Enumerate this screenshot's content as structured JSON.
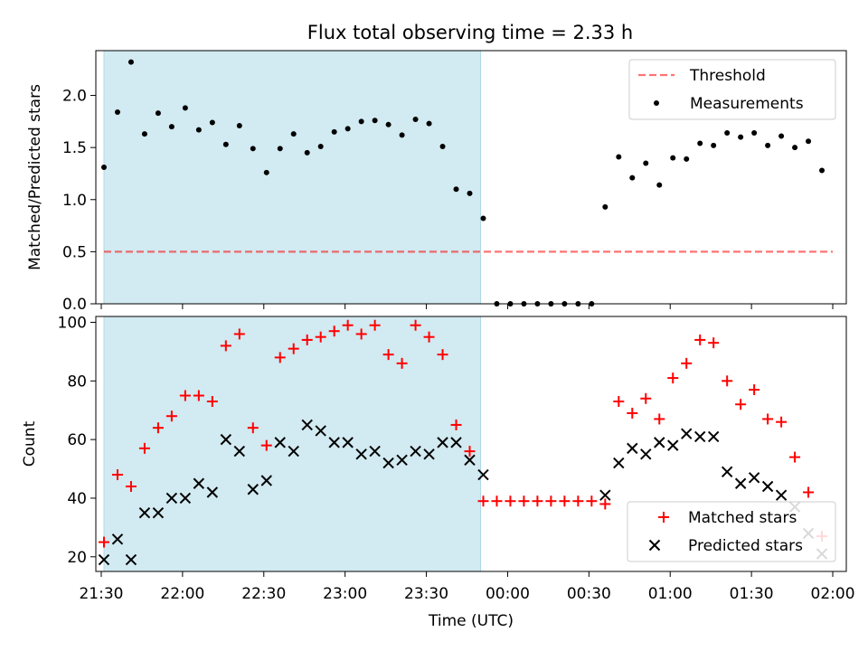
{
  "title": "Flux total observing time = 2.33 h",
  "colors": {
    "shade": "#add8e6",
    "threshold": "#ff0000",
    "measurement": "#000000",
    "matched": "#ff0000",
    "predicted": "#000000"
  },
  "chart_data": [
    {
      "type": "scatter",
      "ylabel": "Matched/Predicted stars",
      "xlim": [
        "21:28",
        "02:05"
      ],
      "ylim": [
        0,
        2.43
      ],
      "yticks": [
        0.0,
        0.5,
        1.0,
        1.5,
        2.0
      ],
      "shaded_interval": [
        "21:31",
        "23:50"
      ],
      "legend": {
        "position": "top-right",
        "entries": [
          "Threshold",
          "Measurements"
        ]
      },
      "threshold": {
        "name": "Threshold",
        "y": 0.5,
        "x": [
          "21:31",
          "02:00"
        ]
      },
      "series": [
        {
          "name": "Measurements",
          "points": [
            [
              "21:31",
              1.31
            ],
            [
              "21:36",
              1.84
            ],
            [
              "21:41",
              2.32
            ],
            [
              "21:46",
              1.63
            ],
            [
              "21:51",
              1.83
            ],
            [
              "21:56",
              1.7
            ],
            [
              "22:01",
              1.88
            ],
            [
              "22:06",
              1.67
            ],
            [
              "22:11",
              1.74
            ],
            [
              "22:16",
              1.53
            ],
            [
              "22:21",
              1.71
            ],
            [
              "22:26",
              1.49
            ],
            [
              "22:31",
              1.26
            ],
            [
              "22:36",
              1.49
            ],
            [
              "22:41",
              1.63
            ],
            [
              "22:46",
              1.45
            ],
            [
              "22:51",
              1.51
            ],
            [
              "22:56",
              1.65
            ],
            [
              "23:01",
              1.68
            ],
            [
              "23:06",
              1.75
            ],
            [
              "23:11",
              1.76
            ],
            [
              "23:16",
              1.72
            ],
            [
              "23:21",
              1.62
            ],
            [
              "23:26",
              1.77
            ],
            [
              "23:31",
              1.73
            ],
            [
              "23:36",
              1.51
            ],
            [
              "23:41",
              1.1
            ],
            [
              "23:46",
              1.06
            ],
            [
              "23:51",
              0.82
            ],
            [
              "23:56",
              0.0
            ],
            [
              "00:01",
              0.0
            ],
            [
              "00:06",
              0.0
            ],
            [
              "00:11",
              0.0
            ],
            [
              "00:16",
              0.0
            ],
            [
              "00:21",
              0.0
            ],
            [
              "00:26",
              0.0
            ],
            [
              "00:31",
              0.0
            ],
            [
              "00:36",
              0.93
            ],
            [
              "00:41",
              1.41
            ],
            [
              "00:46",
              1.21
            ],
            [
              "00:51",
              1.35
            ],
            [
              "00:56",
              1.14
            ],
            [
              "01:01",
              1.4
            ],
            [
              "01:06",
              1.39
            ],
            [
              "01:11",
              1.54
            ],
            [
              "01:16",
              1.52
            ],
            [
              "01:21",
              1.64
            ],
            [
              "01:26",
              1.6
            ],
            [
              "01:31",
              1.64
            ],
            [
              "01:36",
              1.52
            ],
            [
              "01:41",
              1.61
            ],
            [
              "01:46",
              1.5
            ],
            [
              "01:51",
              1.56
            ],
            [
              "01:56",
              1.28
            ]
          ]
        }
      ]
    },
    {
      "type": "scatter",
      "xlabel": "Time (UTC)",
      "ylabel": "Count",
      "xlim": [
        "21:28",
        "02:05"
      ],
      "ylim": [
        15,
        102
      ],
      "yticks": [
        20,
        40,
        60,
        80,
        100
      ],
      "xticks": [
        "21:30",
        "22:00",
        "22:30",
        "23:00",
        "23:30",
        "00:00",
        "00:30",
        "01:00",
        "01:30",
        "02:00"
      ],
      "shaded_interval": [
        "21:31",
        "23:50"
      ],
      "legend": {
        "position": "bottom-right",
        "entries": [
          "Matched stars",
          "Predicted stars"
        ]
      },
      "x": [
        "21:31",
        "21:36",
        "21:41",
        "21:46",
        "21:51",
        "21:56",
        "22:01",
        "22:06",
        "22:11",
        "22:16",
        "22:21",
        "22:26",
        "22:31",
        "22:36",
        "22:41",
        "22:46",
        "22:51",
        "22:56",
        "23:01",
        "23:06",
        "23:11",
        "23:16",
        "23:21",
        "23:26",
        "23:31",
        "23:36",
        "23:41",
        "23:46",
        "23:51",
        "23:56",
        "00:01",
        "00:06",
        "00:11",
        "00:16",
        "00:21",
        "00:26",
        "00:31",
        "00:36",
        "00:41",
        "00:46",
        "00:51",
        "00:56",
        "01:01",
        "01:06",
        "01:11",
        "01:16",
        "01:21",
        "01:26",
        "01:31",
        "01:36",
        "01:41",
        "01:46",
        "01:51",
        "01:56"
      ],
      "series": [
        {
          "name": "Matched stars",
          "marker": "+",
          "values": [
            25,
            48,
            44,
            57,
            64,
            68,
            75,
            75,
            73,
            92,
            96,
            64,
            58,
            88,
            91,
            94,
            95,
            97,
            99,
            96,
            99,
            89,
            86,
            99,
            95,
            89,
            65,
            56,
            39,
            39,
            39,
            39,
            39,
            39,
            39,
            39,
            39,
            38,
            73,
            69,
            74,
            67,
            81,
            86,
            94,
            93,
            80,
            72,
            77,
            67,
            66,
            54,
            42,
            27
          ]
        },
        {
          "name": "Predicted stars",
          "marker": "x",
          "values": [
            19,
            26,
            19,
            35,
            35,
            40,
            40,
            45,
            42,
            60,
            56,
            43,
            46,
            59,
            56,
            65,
            63,
            59,
            59,
            55,
            56,
            52,
            53,
            56,
            55,
            59,
            59,
            53,
            48,
            null,
            null,
            null,
            null,
            null,
            null,
            null,
            null,
            41,
            52,
            57,
            55,
            59,
            58,
            62,
            61,
            61,
            49,
            45,
            47,
            44,
            41,
            37,
            28,
            21
          ]
        }
      ]
    }
  ]
}
